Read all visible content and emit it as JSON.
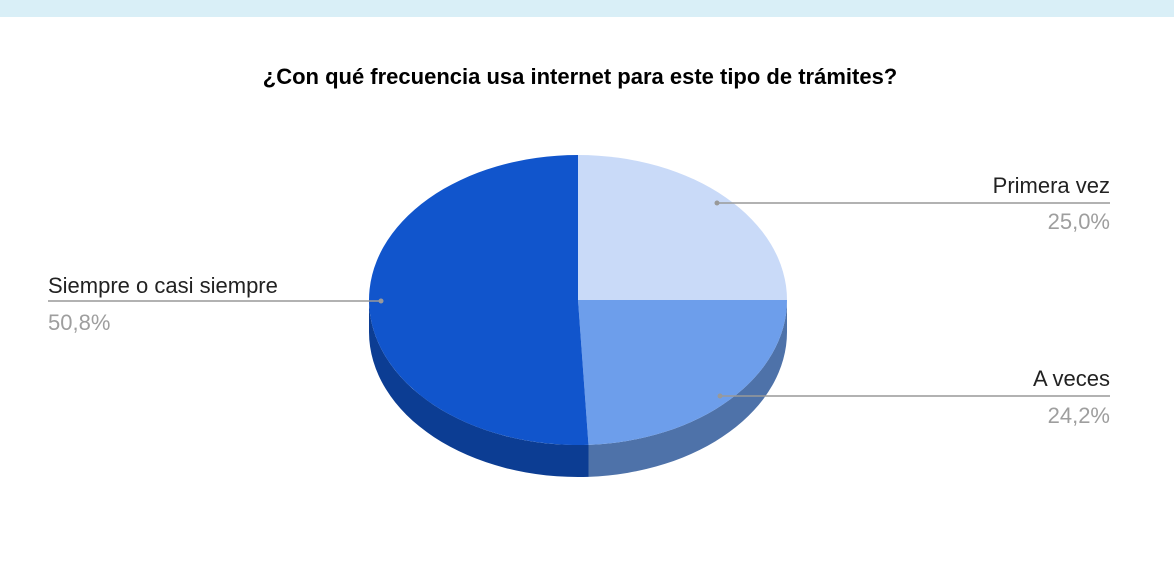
{
  "chart_data": {
    "type": "pie",
    "style": "3d",
    "title": "¿Con qué frecuencia usa internet para este tipo de trámites?",
    "slices": [
      {
        "label": "Primera vez",
        "value": 25.0,
        "percent_label": "25,0%",
        "color": "#c9daf8"
      },
      {
        "label": "A veces",
        "value": 24.2,
        "percent_label": "24,2%",
        "color": "#6d9eeb"
      },
      {
        "label": "Siempre o casi siempre",
        "value": 50.8,
        "percent_label": "50,8%",
        "color": "#1155cc"
      }
    ]
  }
}
